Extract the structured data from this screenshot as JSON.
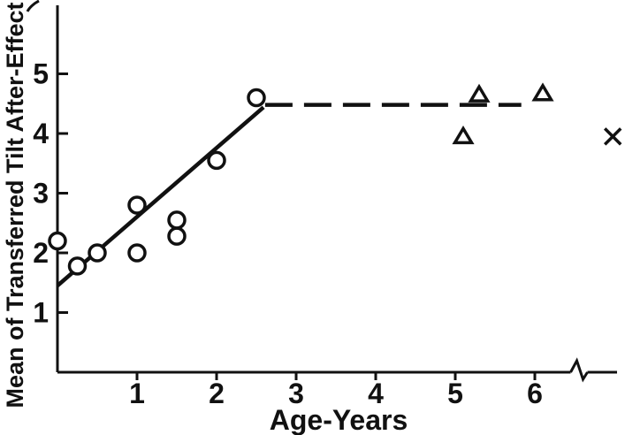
{
  "figure": {
    "background_color": "#ffffff",
    "ink_color": "#111111"
  },
  "chart_data": {
    "type": "scatter",
    "title": "",
    "xlabel": "Age-Years",
    "ylabel": "Mean of Transferred Tilt After-Effect",
    "xlim": [
      0,
      7.1
    ],
    "ylim": [
      0,
      6.1
    ],
    "x_ticks": [
      1,
      2,
      3,
      4,
      5,
      6
    ],
    "y_ticks": [
      1,
      2,
      3,
      4,
      5
    ],
    "grid": false,
    "legend_position": "none",
    "axis_break": {
      "axis": "x",
      "position": 6.45
    },
    "series": [
      {
        "name": "children-circles",
        "marker": "circle",
        "points": [
          [
            0.0,
            2.2
          ],
          [
            0.25,
            1.78
          ],
          [
            0.5,
            2.0
          ],
          [
            1.0,
            2.0
          ],
          [
            1.0,
            2.8
          ],
          [
            1.5,
            2.28
          ],
          [
            1.5,
            2.55
          ],
          [
            2.0,
            3.55
          ],
          [
            2.5,
            4.6
          ]
        ]
      },
      {
        "name": "older-children-triangles",
        "marker": "triangle",
        "points": [
          [
            5.1,
            3.95
          ],
          [
            5.3,
            4.65
          ],
          [
            6.1,
            4.67
          ]
        ]
      },
      {
        "name": "adults-x",
        "marker": "x",
        "beyond_axis_break": true,
        "points": [
          [
            6.98,
            3.95
          ]
        ]
      }
    ],
    "fit_lines": [
      {
        "name": "rising-solid-fit",
        "style": "solid",
        "from": [
          0.0,
          1.45
        ],
        "to": [
          2.59,
          4.44
        ]
      },
      {
        "name": "plateau-dashed-fit",
        "style": "dashed",
        "from": [
          2.61,
          4.48
        ],
        "to": [
          5.83,
          4.48
        ]
      }
    ]
  }
}
